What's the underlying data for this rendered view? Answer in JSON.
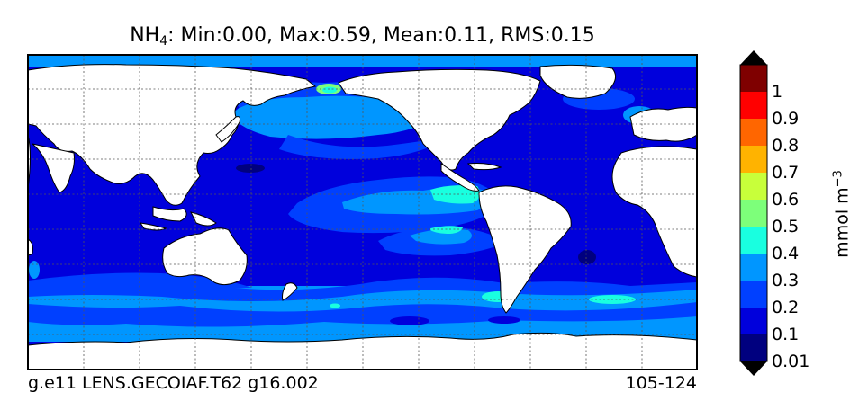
{
  "title": {
    "variable": "NH",
    "variable_subscript": "4",
    "stats": ": Min:0.00, Max:0.59, Mean:0.11, RMS:0.15"
  },
  "footer": {
    "left": "g.e11 LENS.GECOIAF.T62 g16.002",
    "right": "105-124"
  },
  "colorbar": {
    "units_text": "mmol m",
    "units_exponent": "−3",
    "labels": [
      "1",
      "0.9",
      "0.8",
      "0.7",
      "0.6",
      "0.5",
      "0.4",
      "0.3",
      "0.2",
      "0.1",
      "0.01"
    ],
    "colors_top_to_bottom": [
      "#7f0000",
      "#ff0000",
      "#ff6600",
      "#ffb300",
      "#c8ff3a",
      "#7dff7a",
      "#19ffe0",
      "#0096ff",
      "#0040ff",
      "#0000dc",
      "#00007f"
    ],
    "over_color": "#000000",
    "under_color": "#000000"
  },
  "map": {
    "projection": "cylindrical",
    "land_color": "#ffffff",
    "ocean_levels": {
      "lowest": "#00007f",
      "low": "#0000dc",
      "mid": "#0040ff",
      "high": "#0096ff",
      "peak": "#19ffe0"
    },
    "gridlines": "dashed"
  }
}
